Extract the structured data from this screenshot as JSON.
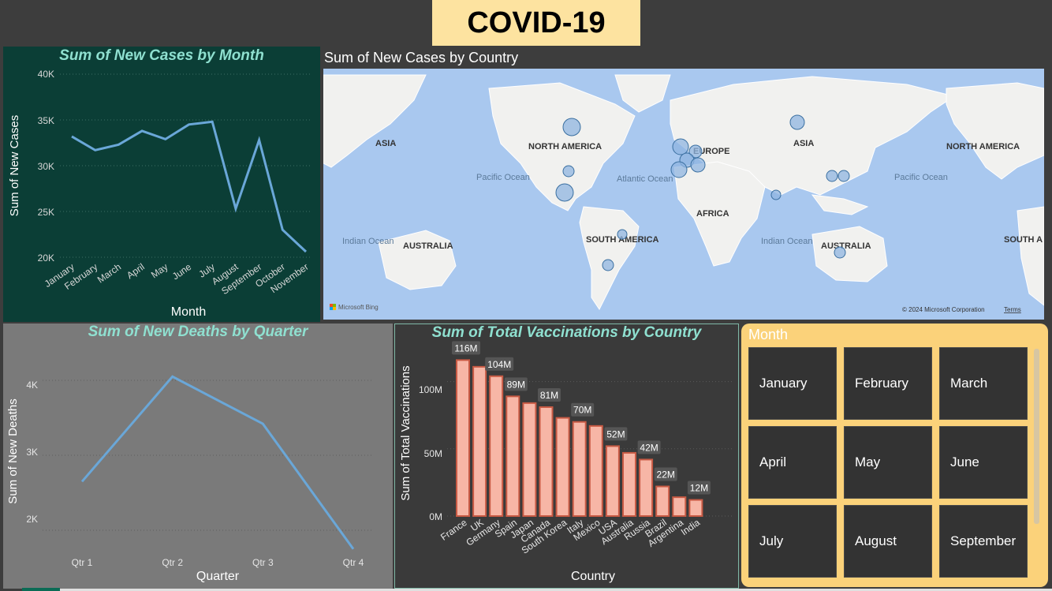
{
  "dashboard": {
    "title": "COVID-19",
    "colors": {
      "title_bg": "#fde3a0",
      "cases_bg": "#0b3e36",
      "deaths_bg": "#7a7a7a",
      "vacc_bg": "#3a3a3a",
      "line": "#6aa7d8",
      "bar_fill": "#f7b6a6",
      "bar_stroke": "#c85a44",
      "slicer_bg": "#fbd27a",
      "chart_title": "#8fe0d0"
    }
  },
  "cases_chart": {
    "title": "Sum of New Cases by Month",
    "xlabel": "Month",
    "ylabel": "Sum of New Cases",
    "yticks": [
      "40K",
      "35K",
      "30K",
      "25K",
      "20K"
    ]
  },
  "map": {
    "title": "Sum of New Cases by Country",
    "labels": {
      "asia_left": "ASIA",
      "north_america": "NORTH AMERICA",
      "europe": "EUROPE",
      "asia": "ASIA",
      "north_america_right": "NORTH AMERICA",
      "pacific_ocean": "Pacific Ocean",
      "atlantic_ocean": "Atlantic Ocean",
      "pacific_ocean_right": "Pacific Ocean",
      "africa": "AFRICA",
      "indian_ocean_left": "Indian Ocean",
      "australia_left": "AUSTRALIA",
      "south_america": "SOUTH AMERICA",
      "indian_ocean": "Indian Ocean",
      "australia": "AUSTRALIA",
      "south_america_right": "SOUTH A"
    },
    "bing": "Microsoft Bing",
    "copyright": "© 2024 Microsoft Corporation",
    "terms": "Terms"
  },
  "deaths_chart": {
    "title": "Sum of New Deaths by Quarter",
    "xlabel": "Quarter",
    "ylabel": "Sum of New Deaths",
    "yticks": [
      "4K",
      "3K",
      "2K"
    ]
  },
  "vacc_chart": {
    "title": "Sum of Total Vaccinations by Country",
    "xlabel": "Country",
    "ylabel": "Sum of Total Vaccinations",
    "yticks": [
      "100M",
      "50M",
      "0M"
    ]
  },
  "slicer": {
    "header": "Month",
    "months": [
      "January",
      "February",
      "March",
      "April",
      "May",
      "June",
      "July",
      "August",
      "September"
    ]
  },
  "chart_data": [
    {
      "type": "line",
      "title": "Sum of New Cases by Month",
      "xlabel": "Month",
      "ylabel": "Sum of New Cases",
      "categories": [
        "January",
        "February",
        "March",
        "April",
        "May",
        "June",
        "July",
        "August",
        "September",
        "October",
        "November"
      ],
      "values": [
        33200,
        31700,
        32300,
        33800,
        32900,
        34500,
        34800,
        25300,
        32800,
        23000,
        20600
      ],
      "ylim": [
        20000,
        40000
      ],
      "grid": true
    },
    {
      "type": "line",
      "title": "Sum of New Deaths by Quarter",
      "xlabel": "Quarter",
      "ylabel": "Sum of New Deaths",
      "categories": [
        "Qtr 1",
        "Qtr 2",
        "Qtr 3",
        "Qtr 4"
      ],
      "values": [
        2650,
        4050,
        3420,
        1750
      ],
      "ylim": [
        1600,
        4400
      ],
      "grid": true
    },
    {
      "type": "bar",
      "title": "Sum of Total Vaccinations by Country",
      "xlabel": "Country",
      "ylabel": "Sum of Total Vaccinations",
      "categories": [
        "France",
        "UK",
        "Germany",
        "Spain",
        "Japan",
        "Canada",
        "South Korea",
        "Italy",
        "Mexico",
        "USA",
        "Australia",
        "Russia",
        "Brazil",
        "Argentina",
        "India"
      ],
      "values": [
        116,
        111,
        104,
        89,
        84,
        81,
        73,
        70,
        67,
        52,
        47,
        42,
        22,
        14,
        12
      ],
      "value_unit": "M",
      "data_labels": [
        "116M",
        "",
        "104M",
        "89M",
        "",
        "81M",
        "",
        "70M",
        "",
        "52M",
        "",
        "42M",
        "22M",
        "",
        "12M"
      ],
      "ylim": [
        0,
        125
      ],
      "grid": true
    },
    {
      "type": "scatter",
      "title": "Sum of New Cases by Country",
      "note_bubbles": "bubble map, circle size proportional to new cases"
    }
  ]
}
